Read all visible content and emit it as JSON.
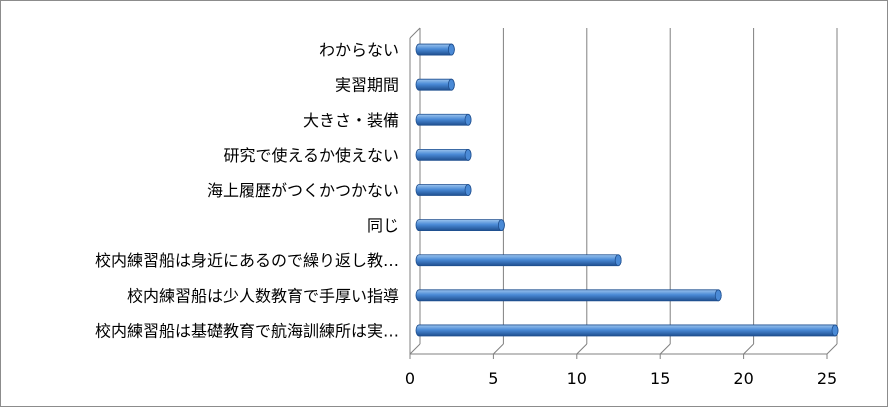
{
  "chart_data": {
    "type": "bar",
    "orientation": "horizontal",
    "title": "",
    "xlabel": "",
    "ylabel": "",
    "categories": [
      "わからない",
      "実習期間",
      "大きさ・装備",
      "研究で使えるか使えない",
      "海上履歴がつくかつかない",
      "同じ",
      "校内練習船は身近にあるので繰り返し教…",
      "校内練習船は少人数教育で手厚い指導",
      "校内練習船は基礎教育で航海訓練所は実…"
    ],
    "values": [
      2,
      2,
      3,
      3,
      3,
      5,
      12,
      18,
      25
    ],
    "xlim": [
      0,
      25
    ],
    "xticks": [
      "0",
      "5",
      "10",
      "15",
      "20",
      "25"
    ],
    "grid": true,
    "legend": "none",
    "colors": {
      "bar_light": "#9cc4ee",
      "bar_mid": "#4a8ad6",
      "bar_dark": "#1f4f8f",
      "grid": "#808080"
    }
  }
}
